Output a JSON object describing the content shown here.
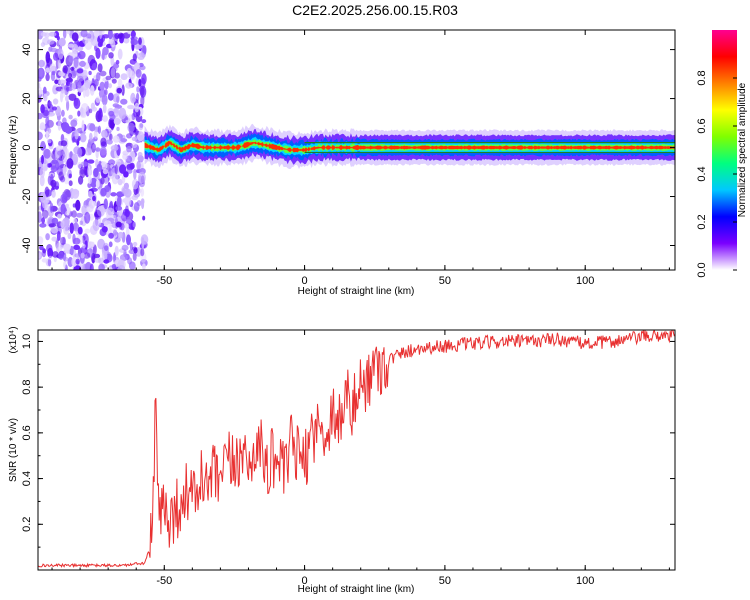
{
  "title": "C2E2.2025.256.00.15.R03",
  "chart_data": [
    {
      "type": "heatmap",
      "xlabel": "Height of straight line (km)",
      "ylabel": "Frequency (Hz)",
      "xlim": [
        -95,
        132
      ],
      "ylim": [
        -50,
        48
      ],
      "xticks": [
        -50,
        0,
        50,
        100
      ],
      "yticks": [
        -40,
        -20,
        0,
        20,
        40
      ],
      "colorbar": {
        "label": "Normalized spectral amplitude",
        "range": [
          0.0,
          1.0
        ],
        "ticks": [
          "0.0",
          "0.2",
          "0.4",
          "0.6",
          "0.8"
        ],
        "colors": [
          "#ffffff",
          "#7a00ff",
          "#0000ff",
          "#00c8ff",
          "#00ff80",
          "#80ff00",
          "#ffff00",
          "#ff8000",
          "#ff0000",
          "#ff0090"
        ]
      },
      "noise_region_x": [
        -95,
        -57
      ],
      "center_line_freq": [
        [
          -57,
          1
        ],
        [
          -52,
          -1
        ],
        [
          -48,
          2
        ],
        [
          -44,
          -1
        ],
        [
          -40,
          1
        ],
        [
          -36,
          0
        ],
        [
          -30,
          0
        ],
        [
          -24,
          0
        ],
        [
          -18,
          2
        ],
        [
          -14,
          1
        ],
        [
          -10,
          0
        ],
        [
          -5,
          -1
        ],
        [
          0,
          -1
        ],
        [
          5,
          0
        ],
        [
          15,
          0
        ],
        [
          30,
          0
        ],
        [
          50,
          0
        ],
        [
          70,
          0
        ],
        [
          90,
          0
        ],
        [
          110,
          0
        ],
        [
          132,
          0
        ]
      ]
    },
    {
      "type": "line",
      "xlabel": "Height of straight line (km)",
      "ylabel": "SNR (10 * v/v)",
      "y_multiplier": "(x10⁴)",
      "xlim": [
        -95,
        132
      ],
      "ylim": [
        0,
        1.05
      ],
      "xticks": [
        -50,
        0,
        50,
        100
      ],
      "yticks": [
        0.2,
        0.4,
        0.6,
        0.8,
        1.0
      ],
      "series": [
        {
          "color": "#e83030",
          "x": [
            -95,
            -80,
            -65,
            -57,
            -55,
            -54,
            -53,
            -52,
            -50,
            -48,
            -45,
            -42,
            -40,
            -37,
            -35,
            -32,
            -30,
            -27,
            -25,
            -22,
            -20,
            -17,
            -15,
            -13,
            -10,
            -7,
            -5,
            -2,
            0,
            2,
            5,
            7,
            10,
            12,
            15,
            17,
            20,
            25,
            30,
            35,
            40,
            50,
            60,
            70,
            80,
            90,
            100,
            110,
            120,
            132
          ],
          "y": [
            0.02,
            0.02,
            0.02,
            0.03,
            0.1,
            0.25,
            0.76,
            0.2,
            0.3,
            0.22,
            0.28,
            0.35,
            0.3,
            0.4,
            0.36,
            0.42,
            0.38,
            0.48,
            0.44,
            0.55,
            0.42,
            0.58,
            0.5,
            0.45,
            0.52,
            0.4,
            0.55,
            0.5,
            0.45,
            0.6,
            0.62,
            0.58,
            0.7,
            0.65,
            0.76,
            0.7,
            0.8,
            0.88,
            0.92,
            0.95,
            0.97,
            0.98,
            0.99,
            1.0,
            1.0,
            1.01,
            0.99,
            1.0,
            1.02,
            1.03
          ]
        }
      ]
    }
  ]
}
